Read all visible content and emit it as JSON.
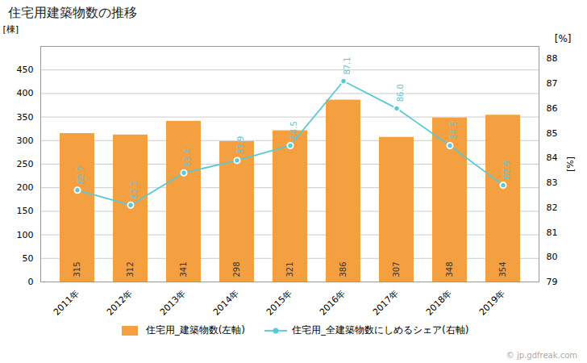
{
  "chart_data": {
    "type": "bar",
    "title": "住宅用建築物数の推移",
    "categories": [
      "2011年",
      "2012年",
      "2013年",
      "2014年",
      "2015年",
      "2016年",
      "2017年",
      "2018年",
      "2019年"
    ],
    "series": [
      {
        "name": "住宅用_建築物数(左軸)",
        "type": "bar",
        "color": "#f5a040",
        "values": [
          315,
          312,
          341,
          298,
          321,
          386,
          307,
          348,
          354
        ]
      },
      {
        "name": "住宅用_全建築物数にしめるシェア(右軸)",
        "type": "line",
        "color": "#5bc8d5",
        "marker": "circle",
        "axis": "y2",
        "values": [
          82.7,
          82.1,
          83.4,
          83.9,
          84.5,
          87.1,
          86.0,
          84.5,
          82.9
        ],
        "value_labels": [
          "82.7",
          "82.1",
          "83.4",
          "83.9",
          "84.5",
          "87.1",
          "86.0",
          "84.5",
          "82.9"
        ]
      }
    ],
    "ylabel": "[棟]",
    "y2label": "[%]",
    "ylim": [
      0,
      500
    ],
    "yticks": [
      0,
      50,
      100,
      150,
      200,
      250,
      300,
      350,
      400,
      450
    ],
    "y2lim": [
      79.0,
      88.5
    ],
    "y2ticks": [
      79.0,
      80.0,
      81.0,
      82.0,
      83.0,
      84.0,
      85.0,
      86.0,
      87.0,
      88.0
    ],
    "grid": true,
    "legend": "bottom",
    "data_labels": true,
    "annotations": [
      "[%]",
      "© jp.gdfreak.com"
    ]
  }
}
